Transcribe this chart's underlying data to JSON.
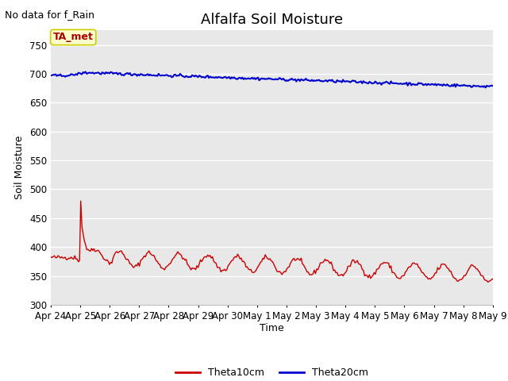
{
  "title": "Alfalfa Soil Moisture",
  "subtitle": "No data for f_Rain",
  "ylabel": "Soil Moisture",
  "xlabel": "Time",
  "ylim": [
    300,
    775
  ],
  "yticks": [
    300,
    350,
    400,
    450,
    500,
    550,
    600,
    650,
    700,
    750
  ],
  "bg_color": "#ffffff",
  "plot_bg_color": "#e8e8e8",
  "annotation_text": "TA_met",
  "annotation_bg": "#ffffcc",
  "annotation_border": "#cccc00",
  "x_labels": [
    "Apr 24",
    "Apr 25",
    "Apr 26",
    "Apr 27",
    "Apr 28",
    "Apr 29",
    "Apr 30",
    "May 1",
    "May 2",
    "May 3",
    "May 4",
    "May 5",
    "May 6",
    "May 7",
    "May 8",
    "May 9"
  ],
  "theta10_color": "#cc0000",
  "theta20_color": "#0000cc",
  "legend_labels": [
    "Theta10cm",
    "Theta20cm"
  ],
  "title_fontsize": 13,
  "axis_label_fontsize": 9,
  "tick_fontsize": 8.5,
  "subtitle_fontsize": 9
}
